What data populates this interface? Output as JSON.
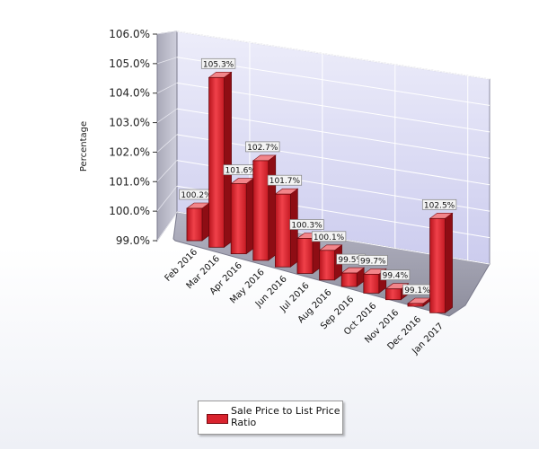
{
  "chart_data": {
    "type": "bar",
    "style": "3d",
    "title": "",
    "xlabel": "",
    "ylabel": "Percentage",
    "ylim": [
      99.0,
      106.0
    ],
    "yticks": [
      "99.0%",
      "100.0%",
      "101.0%",
      "102.0%",
      "103.0%",
      "104.0%",
      "105.0%",
      "106.0%"
    ],
    "categories": [
      "Feb 2016",
      "Mar 2016",
      "Apr 2016",
      "May 2016",
      "Jun 2016",
      "Jul 2016",
      "Aug 2016",
      "Sep 2016",
      "Oct 2016",
      "Nov 2016",
      "Dec 2016",
      "Jan 2017"
    ],
    "series": [
      {
        "name": "Sale Price to List Price Ratio",
        "values": [
          100.2,
          105.3,
          101.6,
          102.7,
          101.7,
          100.3,
          100.1,
          99.5,
          99.7,
          99.4,
          99.1,
          102.5
        ],
        "labels": [
          "100.2%",
          "105.3%",
          "101.6%",
          "102.7%",
          "101.7%",
          "100.3%",
          "100.1%",
          "99.5%",
          "99.7%",
          "99.4%",
          "99.1%",
          "102.5%"
        ],
        "color": "#d9232e"
      }
    ],
    "grid": true,
    "legend_position": "bottom"
  }
}
